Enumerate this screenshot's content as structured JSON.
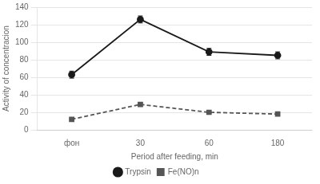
{
  "chart_data": {
    "type": "line",
    "categories": [
      "фон",
      "30",
      "60",
      "180"
    ],
    "series": [
      {
        "name": "Trypsin",
        "color": "#1a1a1a",
        "values": [
          63,
          126,
          89,
          85
        ],
        "errors": [
          4,
          4,
          4,
          4
        ],
        "marker": "circle",
        "line_style": "solid"
      },
      {
        "name": "Fe(NO)n",
        "color": "#555555",
        "values": [
          12,
          29,
          20,
          18
        ],
        "errors": [
          1,
          2,
          1,
          1
        ],
        "marker": "square",
        "line_style": "dashed"
      }
    ],
    "xlabel": "Period after feeding, min",
    "ylabel": "Activity of concentracion",
    "ylim": [
      0,
      140
    ],
    "yticks": [
      0,
      20,
      40,
      60,
      80,
      100,
      120,
      140
    ],
    "grid": true,
    "legend": "bottom"
  }
}
